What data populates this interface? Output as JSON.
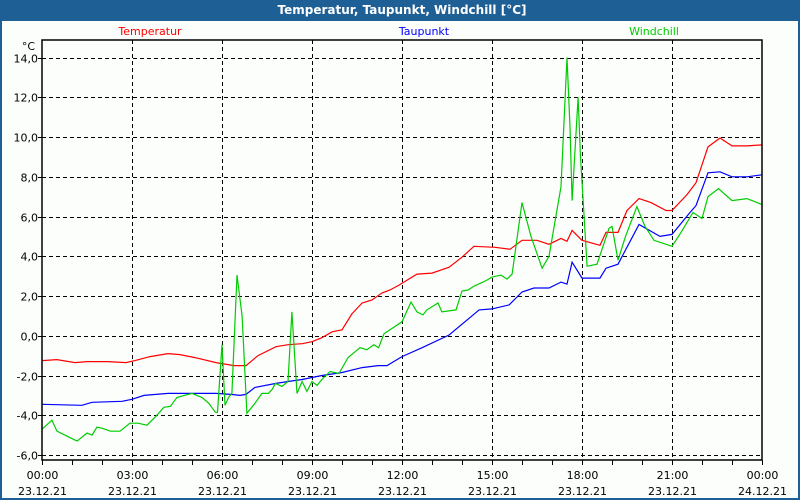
{
  "window": {
    "title": "Temperatur, Taupunkt, Windchill [°C]"
  },
  "chart_data": {
    "type": "line",
    "title": "Temperatur, Taupunkt, Windchill [°C]",
    "ylabel": "°C",
    "xlabel": "",
    "xlim": [
      0,
      24
    ],
    "ylim": [
      -6,
      14
    ],
    "grid": true,
    "legend_position": "top",
    "y_ticks": [
      14,
      12,
      10,
      8,
      6,
      4,
      2,
      0,
      -2,
      -4,
      -6
    ],
    "y_tick_labels": [
      "14,0",
      "12,0",
      "10,0",
      "8,0",
      "6,0",
      "4,0",
      "2,0",
      "0,0",
      "-2,0",
      "-4,0",
      "-6,0"
    ],
    "x_ticks": [
      0,
      3,
      6,
      9,
      12,
      15,
      18,
      21,
      24
    ],
    "x_tick_labels": [
      {
        "time": "00:00",
        "date": "23.12.21"
      },
      {
        "time": "03:00",
        "date": "23.12.21"
      },
      {
        "time": "06:00",
        "date": "23.12.21"
      },
      {
        "time": "09:00",
        "date": "23.12.21"
      },
      {
        "time": "12:00",
        "date": "23.12.21"
      },
      {
        "time": "15:00",
        "date": "23.12.21"
      },
      {
        "time": "18:00",
        "date": "23.12.21"
      },
      {
        "time": "21:00",
        "date": "23.12.21"
      },
      {
        "time": "00:00",
        "date": "24.12.21"
      }
    ],
    "x_unit": "hours since 23.12.21 00:00",
    "series": [
      {
        "name": "Temperatur",
        "color": "#ff0000",
        "points": [
          [
            0,
            -1.25
          ],
          [
            0.5,
            -1.2
          ],
          [
            1.1,
            -1.35
          ],
          [
            1.5,
            -1.3
          ],
          [
            2.2,
            -1.3
          ],
          [
            2.8,
            -1.35
          ],
          [
            3.1,
            -1.25
          ],
          [
            3.6,
            -1.05
          ],
          [
            4.2,
            -0.9
          ],
          [
            4.6,
            -0.95
          ],
          [
            5.1,
            -1.1
          ],
          [
            5.8,
            -1.35
          ],
          [
            6.4,
            -1.5
          ],
          [
            6.8,
            -1.5
          ],
          [
            7.2,
            -1.0
          ],
          [
            7.8,
            -0.55
          ],
          [
            8.2,
            -0.45
          ],
          [
            8.67,
            -0.4
          ],
          [
            9,
            -0.3
          ],
          [
            9.33,
            -0.1
          ],
          [
            9.67,
            0.2
          ],
          [
            10,
            0.3
          ],
          [
            10.33,
            1.1
          ],
          [
            10.67,
            1.65
          ],
          [
            11,
            1.8
          ],
          [
            11.33,
            2.15
          ],
          [
            11.6,
            2.3
          ],
          [
            11.9,
            2.55
          ],
          [
            12.5,
            3.1
          ],
          [
            13,
            3.15
          ],
          [
            13.57,
            3.45
          ],
          [
            14,
            3.95
          ],
          [
            14.4,
            4.5
          ],
          [
            15.1,
            4.45
          ],
          [
            15.6,
            4.35
          ],
          [
            16,
            4.8
          ],
          [
            16.5,
            4.8
          ],
          [
            16.9,
            4.6
          ],
          [
            17.3,
            4.9
          ],
          [
            17.5,
            4.75
          ],
          [
            17.67,
            5.3
          ],
          [
            18,
            4.8
          ],
          [
            18.6,
            4.55
          ],
          [
            18.8,
            5.2
          ],
          [
            19.2,
            5.2
          ],
          [
            19.5,
            6.3
          ],
          [
            19.9,
            6.9
          ],
          [
            20.3,
            6.7
          ],
          [
            20.8,
            6.3
          ],
          [
            21,
            6.3
          ],
          [
            21.5,
            7.1
          ],
          [
            21.8,
            7.7
          ],
          [
            22,
            8.6
          ],
          [
            22.2,
            9.5
          ],
          [
            22.6,
            9.95
          ],
          [
            23,
            9.55
          ],
          [
            23.5,
            9.55
          ],
          [
            24,
            9.6
          ]
        ]
      },
      {
        "name": "Taupunkt",
        "color": "#0000ff",
        "points": [
          [
            0,
            -3.45
          ],
          [
            1.33,
            -3.5
          ],
          [
            1.67,
            -3.35
          ],
          [
            2.67,
            -3.3
          ],
          [
            3,
            -3.2
          ],
          [
            3.4,
            -3.0
          ],
          [
            4.2,
            -2.9
          ],
          [
            5.8,
            -2.9
          ],
          [
            6.3,
            -2.95
          ],
          [
            6.6,
            -3.0
          ],
          [
            6.8,
            -2.95
          ],
          [
            7.1,
            -2.6
          ],
          [
            7.8,
            -2.4
          ],
          [
            8.2,
            -2.3
          ],
          [
            8.67,
            -2.2
          ],
          [
            9.33,
            -2.0
          ],
          [
            10,
            -1.85
          ],
          [
            10.67,
            -1.6
          ],
          [
            11.2,
            -1.5
          ],
          [
            11.5,
            -1.5
          ],
          [
            12,
            -1.05
          ],
          [
            12.67,
            -0.6
          ],
          [
            13.57,
            0.04
          ],
          [
            14.57,
            1.3
          ],
          [
            15,
            1.35
          ],
          [
            15.57,
            1.55
          ],
          [
            16,
            2.2
          ],
          [
            16.4,
            2.4
          ],
          [
            16.9,
            2.4
          ],
          [
            17.3,
            2.7
          ],
          [
            17.5,
            2.6
          ],
          [
            17.67,
            3.7
          ],
          [
            18,
            2.9
          ],
          [
            18.6,
            2.9
          ],
          [
            18.8,
            3.4
          ],
          [
            19.2,
            3.6
          ],
          [
            19.9,
            5.6
          ],
          [
            20.6,
            5.0
          ],
          [
            21,
            5.1
          ],
          [
            21.6,
            6.2
          ],
          [
            21.8,
            6.55
          ],
          [
            22.2,
            8.2
          ],
          [
            22.6,
            8.25
          ],
          [
            23,
            8.0
          ],
          [
            23.5,
            8.0
          ],
          [
            24,
            8.1
          ]
        ]
      },
      {
        "name": "Windchill",
        "color": "#00cc00",
        "points": [
          [
            0,
            -4.7
          ],
          [
            0.33,
            -4.25
          ],
          [
            0.5,
            -4.8
          ],
          [
            1.1,
            -5.25
          ],
          [
            1.17,
            -5.3
          ],
          [
            1.5,
            -4.9
          ],
          [
            1.67,
            -5.0
          ],
          [
            1.83,
            -4.6
          ],
          [
            2.0,
            -4.65
          ],
          [
            2.28,
            -4.8
          ],
          [
            2.6,
            -4.8
          ],
          [
            2.93,
            -4.4
          ],
          [
            3.2,
            -4.4
          ],
          [
            3.5,
            -4.5
          ],
          [
            3.83,
            -4.0
          ],
          [
            4.06,
            -3.6
          ],
          [
            4.28,
            -3.55
          ],
          [
            4.5,
            -3.1
          ],
          [
            5,
            -2.9
          ],
          [
            5.33,
            -3.1
          ],
          [
            5.56,
            -3.4
          ],
          [
            5.78,
            -3.85
          ],
          [
            5.85,
            -3.85
          ],
          [
            6,
            -0.45
          ],
          [
            6.1,
            -3.5
          ],
          [
            6.22,
            -3.1
          ],
          [
            6.33,
            -2.9
          ],
          [
            6.5,
            3.05
          ],
          [
            6.67,
            1.0
          ],
          [
            6.83,
            -3.9
          ],
          [
            7.1,
            -3.4
          ],
          [
            7.33,
            -2.9
          ],
          [
            7.55,
            -2.9
          ],
          [
            7.67,
            -2.7
          ],
          [
            7.78,
            -2.4
          ],
          [
            8.0,
            -2.55
          ],
          [
            8.2,
            -2.3
          ],
          [
            8.33,
            1.2
          ],
          [
            8.5,
            -2.9
          ],
          [
            8.67,
            -2.3
          ],
          [
            8.83,
            -2.8
          ],
          [
            9,
            -2.3
          ],
          [
            9.17,
            -2.5
          ],
          [
            9.33,
            -2.2
          ],
          [
            9.6,
            -1.8
          ],
          [
            9.9,
            -1.9
          ],
          [
            10.2,
            -1.1
          ],
          [
            10.6,
            -0.6
          ],
          [
            10.83,
            -0.7
          ],
          [
            11.06,
            -0.45
          ],
          [
            11.22,
            -0.6
          ],
          [
            11.4,
            0.1
          ],
          [
            12,
            0.7
          ],
          [
            12.3,
            1.7
          ],
          [
            12.5,
            1.2
          ],
          [
            12.7,
            1.05
          ],
          [
            12.83,
            1.3
          ],
          [
            13.2,
            1.65
          ],
          [
            13.33,
            1.2
          ],
          [
            13.8,
            1.3
          ],
          [
            14,
            2.25
          ],
          [
            14.2,
            2.3
          ],
          [
            14.4,
            2.5
          ],
          [
            14.7,
            2.7
          ],
          [
            14.83,
            2.8
          ],
          [
            15,
            2.95
          ],
          [
            15.3,
            3.05
          ],
          [
            15.5,
            2.85
          ],
          [
            15.67,
            3.1
          ],
          [
            16,
            6.7
          ],
          [
            16.3,
            5.0
          ],
          [
            16.67,
            3.4
          ],
          [
            16.9,
            4.0
          ],
          [
            17.3,
            7.5
          ],
          [
            17.5,
            14.0
          ],
          [
            17.6,
            10.5
          ],
          [
            17.67,
            6.8
          ],
          [
            17.87,
            12.0
          ],
          [
            17.95,
            9.0
          ],
          [
            18.17,
            3.5
          ],
          [
            18.5,
            3.6
          ],
          [
            18.9,
            5.4
          ],
          [
            19.0,
            5.5
          ],
          [
            19.2,
            3.8
          ],
          [
            19.45,
            5.0
          ],
          [
            19.83,
            6.5
          ],
          [
            20.1,
            5.5
          ],
          [
            20.4,
            4.8
          ],
          [
            21,
            4.5
          ],
          [
            21.3,
            5.2
          ],
          [
            21.7,
            6.2
          ],
          [
            22,
            5.9
          ],
          [
            22.2,
            7.0
          ],
          [
            22.55,
            7.4
          ],
          [
            23,
            6.8
          ],
          [
            23.5,
            6.9
          ],
          [
            24,
            6.6
          ]
        ]
      }
    ]
  }
}
